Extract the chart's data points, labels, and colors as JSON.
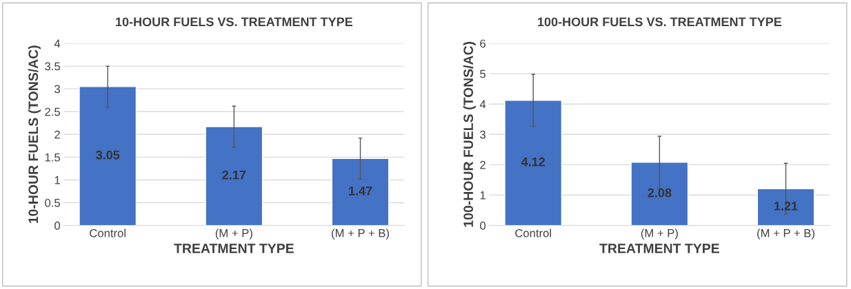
{
  "chart_data": [
    {
      "type": "bar",
      "title": "10-HOUR FUELS VS. TREATMENT TYPE",
      "xlabel": "TREATMENT TYPE",
      "ylabel": "10-HOUR FUELS (TONS/AC)",
      "categories": [
        "Control",
        "(M + P)",
        "(M + P + B)"
      ],
      "values": [
        3.05,
        2.17,
        1.47
      ],
      "errors": [
        0.45,
        0.45,
        0.45
      ],
      "color": "#4472c4",
      "ylim": [
        0,
        4
      ],
      "yticks": [
        0,
        0.5,
        1,
        1.5,
        2,
        2.5,
        3,
        3.5,
        4
      ],
      "grid": "y",
      "data_labels": true
    },
    {
      "type": "bar",
      "title": "100-HOUR FUELS VS. TREATMENT TYPE",
      "xlabel": "TREATMENT TYPE",
      "ylabel": "100-HOUR FUELS (TONS/AC)",
      "categories": [
        "Control",
        "(M + P)",
        "(M + P + B)"
      ],
      "values": [
        4.12,
        2.08,
        1.21
      ],
      "errors": [
        0.86,
        0.86,
        0.84
      ],
      "color": "#4472c4",
      "ylim": [
        0,
        6
      ],
      "yticks": [
        0,
        1,
        2,
        3,
        4,
        5,
        6
      ],
      "grid": "y",
      "data_labels": true
    }
  ]
}
